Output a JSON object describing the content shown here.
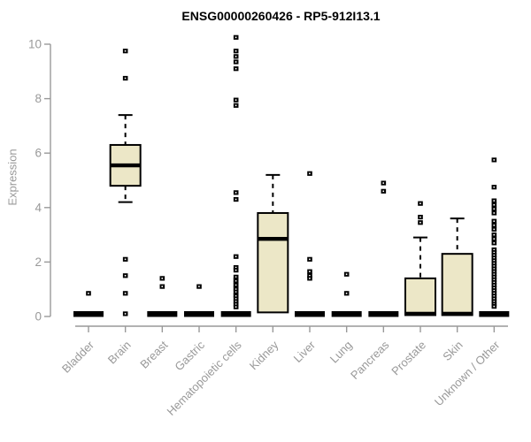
{
  "title": "ENSG00000260426 - RP5-912I13.1",
  "colors": {
    "box_fill": "#ece7c7",
    "box_stroke": "#000000",
    "median": "#000000",
    "outlier": "#000000",
    "axis": "#999999",
    "tick_text": "#999999",
    "title_text": "#000000",
    "background": "#ffffff"
  },
  "chart_data": {
    "type": "boxplot",
    "title": "ENSG00000260426 - RP5-912I13.1",
    "xlabel": "",
    "ylabel": "Expression",
    "ylim": [
      0,
      10.4
    ],
    "yticks": [
      0,
      2,
      4,
      6,
      8,
      10
    ],
    "grid": false,
    "legend": "none",
    "categories": [
      "Bladder",
      "Brain",
      "Breast",
      "Gastric",
      "Hematopoietic cells",
      "Kidney",
      "Liver",
      "Lung",
      "Pancreas",
      "Prostate",
      "Skin",
      "Unknown / Other"
    ],
    "series": [
      {
        "category": "Bladder",
        "q1": 0,
        "median": 0,
        "q3": 0,
        "whisker_low": 0,
        "whisker_high": 0,
        "outliers": [
          0.85
        ]
      },
      {
        "category": "Brain",
        "q1": 4.8,
        "median": 5.55,
        "q3": 6.3,
        "whisker_low": 4.2,
        "whisker_high": 7.4,
        "outliers": [
          9.75,
          8.75,
          2.1,
          1.5,
          0.85,
          0.1
        ]
      },
      {
        "category": "Breast",
        "q1": 0,
        "median": 0,
        "q3": 0,
        "whisker_low": 0,
        "whisker_high": 0,
        "outliers": [
          1.4,
          1.1
        ]
      },
      {
        "category": "Gastric",
        "q1": 0,
        "median": 0,
        "q3": 0,
        "whisker_low": 0,
        "whisker_high": 0,
        "outliers": [
          1.1
        ]
      },
      {
        "category": "Hematopoietic cells",
        "q1": 0,
        "median": 0,
        "q3": 0,
        "whisker_low": 0,
        "whisker_high": 0,
        "outliers": [
          10.25,
          9.75,
          9.55,
          9.35,
          9.1,
          7.95,
          7.75,
          4.55,
          4.3,
          2.2,
          1.8,
          1.7,
          1.45,
          1.35,
          1.3,
          1.2,
          1.15,
          1.05,
          1.0,
          0.9,
          0.8,
          0.75,
          0.65,
          0.55,
          0.45,
          0.35
        ]
      },
      {
        "category": "Kidney",
        "q1": 0.15,
        "median": 2.85,
        "q3": 3.8,
        "whisker_low": 0.15,
        "whisker_high": 5.2,
        "outliers": []
      },
      {
        "category": "Liver",
        "q1": 0,
        "median": 0,
        "q3": 0,
        "whisker_low": 0,
        "whisker_high": 0,
        "outliers": [
          5.25,
          2.1,
          1.65,
          1.5,
          1.4
        ]
      },
      {
        "category": "Lung",
        "q1": 0,
        "median": 0,
        "q3": 0,
        "whisker_low": 0,
        "whisker_high": 0,
        "outliers": [
          1.55,
          0.85
        ]
      },
      {
        "category": "Pancreas",
        "q1": 0,
        "median": 0,
        "q3": 0,
        "whisker_low": 0,
        "whisker_high": 0,
        "outliers": [
          4.9,
          4.6
        ]
      },
      {
        "category": "Prostate",
        "q1": 0.05,
        "median": 0.1,
        "q3": 1.4,
        "whisker_low": 0.05,
        "whisker_high": 2.9,
        "outliers": [
          4.15,
          3.65,
          3.45
        ]
      },
      {
        "category": "Skin",
        "q1": 0.05,
        "median": 0.1,
        "q3": 2.3,
        "whisker_low": 0.05,
        "whisker_high": 3.6,
        "outliers": []
      },
      {
        "category": "Unknown / Other",
        "q1": 0,
        "median": 0,
        "q3": 0,
        "whisker_low": 0,
        "whisker_high": 0,
        "outliers": [
          5.75,
          4.75,
          4.25,
          4.1,
          3.95,
          3.8,
          3.5,
          3.35,
          3.2,
          3.0,
          2.85,
          2.7,
          2.45,
          2.35,
          2.25,
          2.15,
          2.05,
          1.95,
          1.85,
          1.75,
          1.65,
          1.55,
          1.45,
          1.35,
          1.25,
          1.15,
          1.05,
          0.95,
          0.85,
          0.75,
          0.65,
          0.55,
          0.45,
          0.37
        ]
      }
    ]
  }
}
